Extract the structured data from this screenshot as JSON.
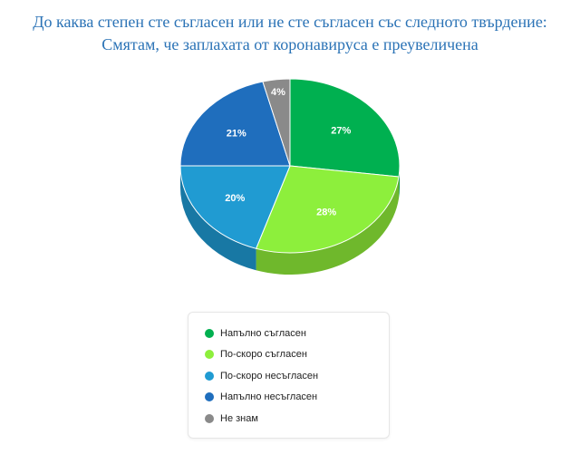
{
  "chart_data": {
    "type": "pie",
    "title_lines": [
      "До каква степен сте съгласен или не сте съгласен със следното твърдение:",
      "Смятам, че заплахата от коронавируса е преувеличена"
    ],
    "unit": "%",
    "slices": [
      {
        "label": "Напълно съгласен",
        "value": 27,
        "color": "#00b050",
        "side_color": "#009440"
      },
      {
        "label": "По-скоро съгласен",
        "value": 28,
        "color": "#8def3c",
        "side_color": "#6fb82c"
      },
      {
        "label": "По-скоро несъгласен",
        "value": 20,
        "color": "#209bd2",
        "side_color": "#1878a4"
      },
      {
        "label": "Напълно несъгласен",
        "value": 21,
        "color": "#1f6ebd",
        "side_color": "#18568f"
      },
      {
        "label": "Не знам",
        "value": 4,
        "color": "#8a8a8a",
        "side_color": "#6c6c6c"
      }
    ],
    "legend_position": "bottom",
    "style": "3d"
  }
}
